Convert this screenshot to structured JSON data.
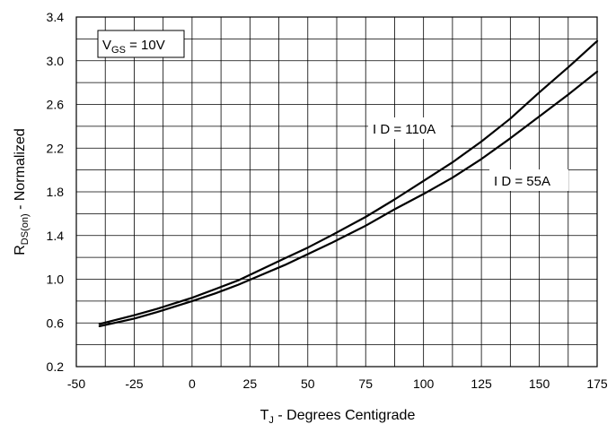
{
  "chart_data": {
    "type": "line",
    "title": "",
    "xlabel": {
      "main": "T",
      "sub": "J",
      "rest": " - Degrees Centigrade"
    },
    "ylabel": {
      "main": "R",
      "sub": "DS(on)",
      "rest": " - Normalized"
    },
    "xlim": [
      -50,
      175
    ],
    "ylim": [
      0.2,
      3.4
    ],
    "grid": true,
    "x_ticks": [
      -50,
      -25,
      0,
      25,
      50,
      75,
      100,
      125,
      150,
      175
    ],
    "x_tick_labels": [
      "-50",
      "-25",
      "0",
      "25",
      "50",
      "75",
      "100",
      "125",
      "150",
      "175"
    ],
    "y_ticks": [
      0.2,
      0.6,
      1.0,
      1.4,
      1.8,
      2.2,
      2.6,
      3.0,
      3.4
    ],
    "y_tick_labels": [
      "0.2",
      "0.6",
      "1.0",
      "1.4",
      "1.8",
      "2.2",
      "2.6",
      "3.0",
      "3.4"
    ],
    "series": [
      {
        "name": "I D = 110A",
        "x": [
          -40,
          -25,
          -15,
          0,
          10,
          20,
          30,
          40,
          50,
          60,
          75,
          87.5,
          100,
          112.5,
          125,
          137.5,
          150,
          162.5,
          175
        ],
        "y": [
          0.59,
          0.67,
          0.73,
          0.83,
          0.91,
          0.99,
          1.09,
          1.19,
          1.29,
          1.4,
          1.57,
          1.73,
          1.9,
          2.07,
          2.26,
          2.47,
          2.71,
          2.94,
          3.18
        ]
      },
      {
        "name": "I D = 55A",
        "x": [
          -40,
          -25,
          -15,
          0,
          10,
          20,
          30,
          40,
          50,
          60,
          75,
          87.5,
          100,
          112.5,
          125,
          137.5,
          150,
          162.5,
          175
        ],
        "y": [
          0.57,
          0.64,
          0.7,
          0.8,
          0.87,
          0.95,
          1.04,
          1.13,
          1.23,
          1.33,
          1.49,
          1.64,
          1.78,
          1.93,
          2.1,
          2.29,
          2.49,
          2.69,
          2.9
        ]
      }
    ],
    "annotations": {
      "vgs": {
        "main": "V",
        "sub": "GS",
        "rest": " = 10V"
      },
      "id110": "I D = 110A",
      "id55": "I D = 55A"
    }
  }
}
